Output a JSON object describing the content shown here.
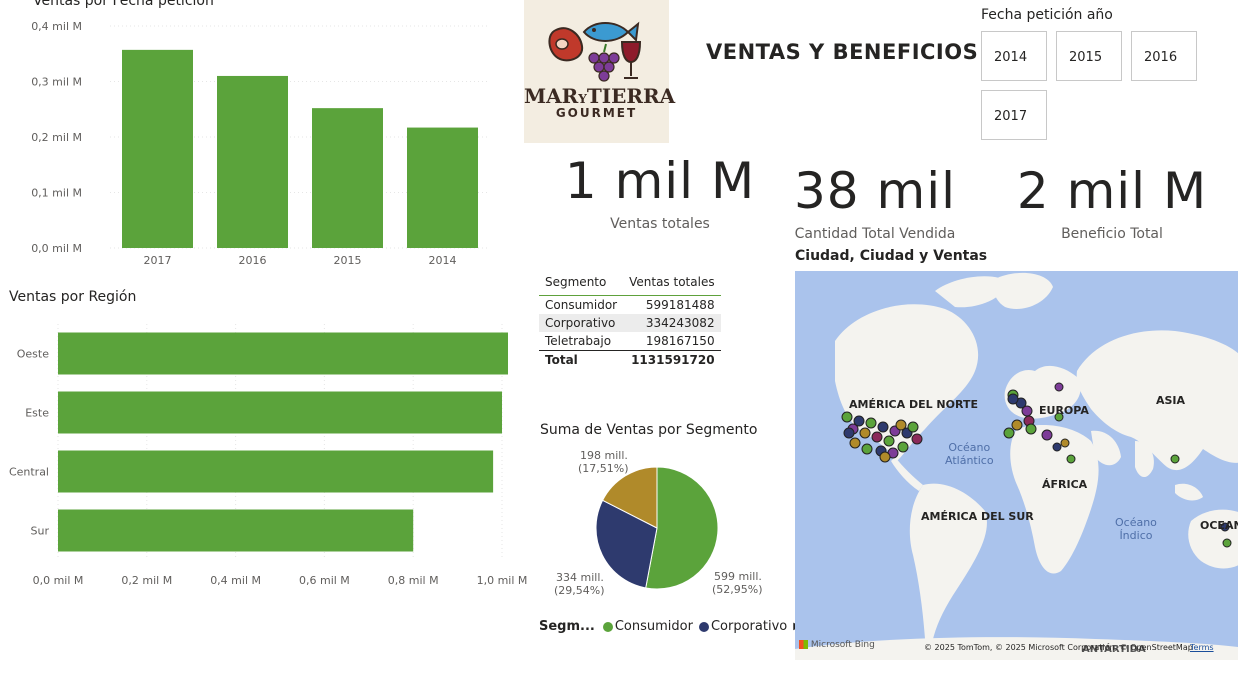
{
  "page_title": "VENTAS Y BENEFICIOS",
  "logo": {
    "line1": "MAR",
    "small": "Y",
    "line2": "TIERRA",
    "line3": "GOURMET"
  },
  "slicer": {
    "title": "Fecha petición año",
    "options": [
      "2014",
      "2015",
      "2016",
      "2017"
    ]
  },
  "kpis": [
    {
      "value": "1 mil M",
      "label": "Ventas totales"
    },
    {
      "value": "38 mil",
      "label": "Cantidad Total Vendida"
    },
    {
      "value": "2 mil M",
      "label": "Beneficio Total"
    }
  ],
  "segment_table": {
    "headers": [
      "Segmento",
      "Ventas totales"
    ],
    "rows": [
      {
        "segment": "Consumidor",
        "value": "599181488"
      },
      {
        "segment": "Corporativo",
        "value": "334243082"
      },
      {
        "segment": "Teletrabajo",
        "value": "198167150"
      }
    ],
    "total": {
      "label": "Total",
      "value": "1131591720"
    }
  },
  "map": {
    "title": "Ciudad, Ciudad y Ventas",
    "continents": [
      "AMÉRICA DEL NORTE",
      "EUROPA",
      "ASIA",
      "ÁFRICA",
      "AMÉRICA DEL SUR",
      "OCEANÍA",
      "ANTÁRTIDA"
    ],
    "oceans": [
      [
        "Océano",
        "Atlántico"
      ],
      [
        "Océano",
        "Índico"
      ]
    ],
    "brand": "Microsoft Bing",
    "attribution": "© 2025 TomTom, © 2025 Microsoft Corporation, © OpenStreetMap",
    "terms": "Terms"
  },
  "colors": {
    "green": "#5ba33b",
    "navy": "#2e3a6e",
    "gold": "#b08a2a"
  },
  "chart_data": [
    {
      "type": "bar",
      "title": "Ventas por Fecha petición",
      "categories": [
        "2017",
        "2016",
        "2015",
        "2014"
      ],
      "values": [
        0.357,
        0.31,
        0.252,
        0.217
      ],
      "ylim": [
        0,
        0.4
      ],
      "yticks": [
        0,
        0.1,
        0.2,
        0.3,
        0.4
      ],
      "ytick_labels": [
        "0,0 mil M",
        "0,1 mil M",
        "0,2 mil M",
        "0,3 mil M",
        "0,4 mil M"
      ]
    },
    {
      "type": "bar",
      "orientation": "horizontal",
      "title": "Ventas por Región",
      "categories": [
        "Oeste",
        "Este",
        "Central",
        "Sur"
      ],
      "values": [
        1.02,
        1.0,
        0.98,
        0.8
      ],
      "xlim": [
        0,
        1.0
      ],
      "xticks": [
        0,
        0.2,
        0.4,
        0.6,
        0.8,
        1.0
      ],
      "xtick_labels": [
        "0,0 mil M",
        "0,2 mil M",
        "0,4 mil M",
        "0,6 mil M",
        "0,8 mil M",
        "1,0 mil M"
      ]
    },
    {
      "type": "pie",
      "title": "Suma de Ventas por Segmento",
      "legend_title": "Segm...",
      "legend_entries": [
        "Consumidor",
        "Corporativo"
      ],
      "legend": "bottom",
      "slices": [
        {
          "name": "Consumidor",
          "value": 599,
          "label1": "599 mill.",
          "label2": "(52,95%)",
          "color": "#5ba33b"
        },
        {
          "name": "Corporativo",
          "value": 334,
          "label1": "334 mill.",
          "label2": "(29,54%)",
          "color": "#2e3a6e"
        },
        {
          "name": "Teletrabajo",
          "value": 198,
          "label1": "198 mill.",
          "label2": "(17,51%)",
          "color": "#b08a2a"
        }
      ]
    }
  ]
}
